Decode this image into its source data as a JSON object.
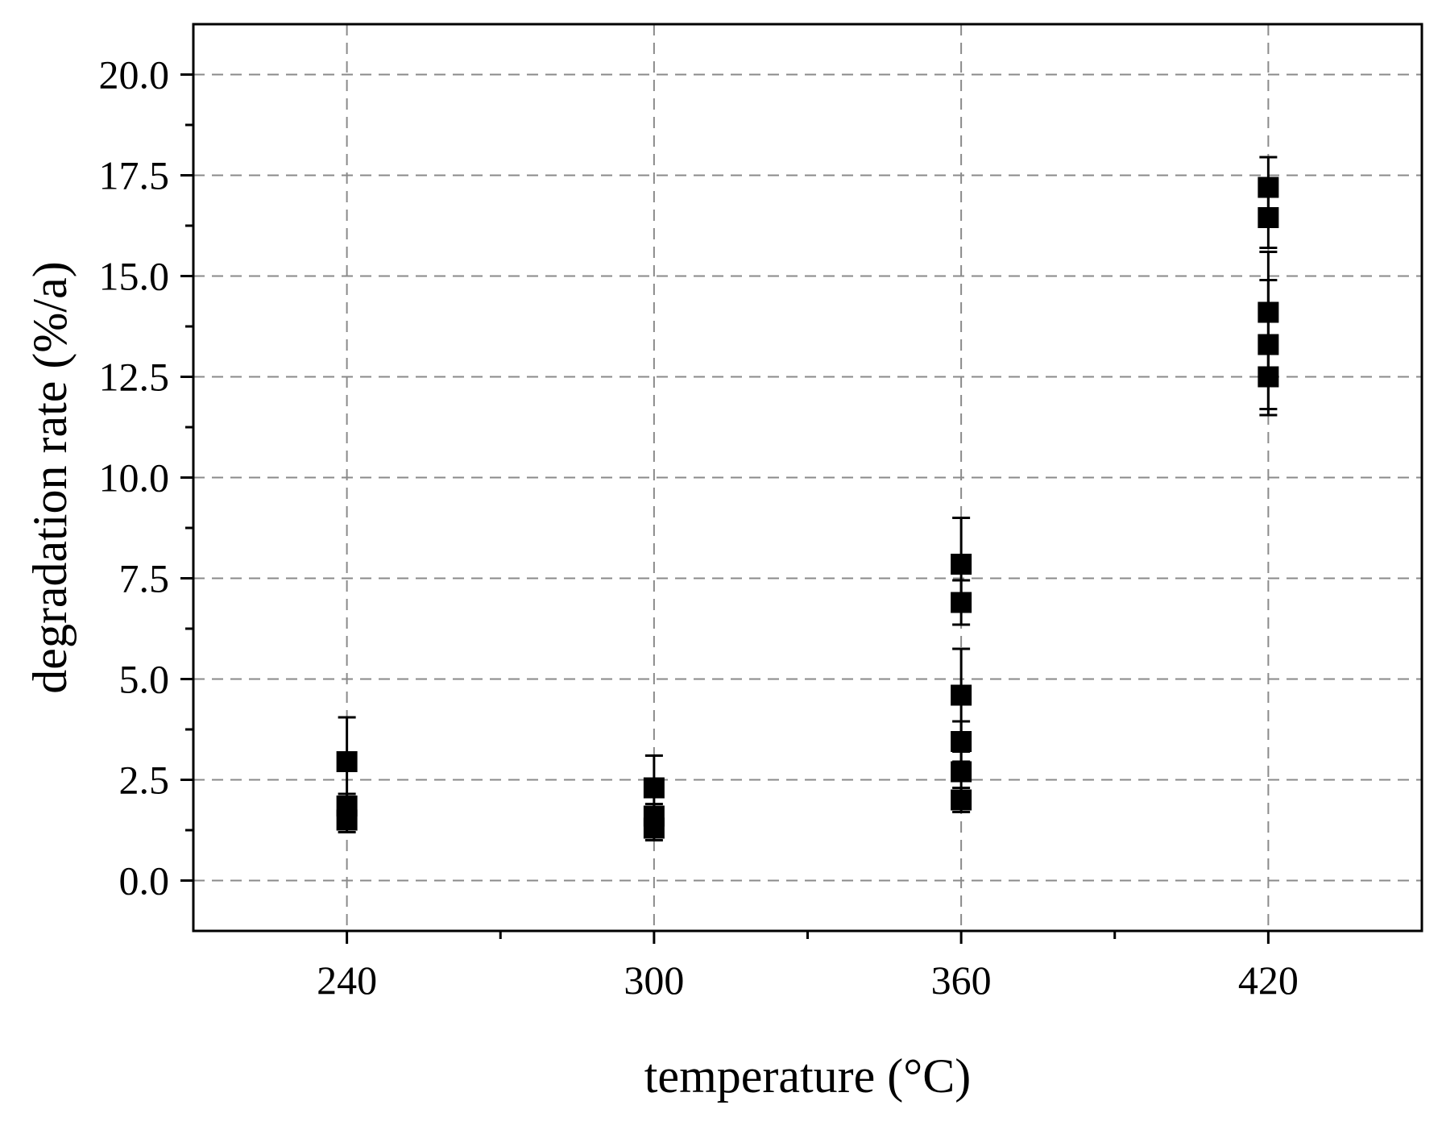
{
  "chart_data": {
    "type": "scatter",
    "title": "",
    "xlabel": "temperature (°C)",
    "ylabel": "degradation rate (%/a)",
    "xlim": [
      210,
      450
    ],
    "ylim": [
      -1.25,
      21.25
    ],
    "grid": true,
    "x_ticks": [
      240,
      300,
      360,
      420
    ],
    "x_tick_labels": [
      "240",
      "300",
      "360",
      "420"
    ],
    "y_ticks": [
      0,
      2.5,
      5,
      7.5,
      10,
      12.5,
      15,
      17.5,
      20
    ],
    "y_tick_labels": [
      "0.0",
      "2.5",
      "5.0",
      "7.5",
      "10.0",
      "12.5",
      "15.0",
      "17.5",
      "20.0"
    ],
    "marker": "square",
    "color": "#000000",
    "points": [
      {
        "x": 240,
        "y": 2.95,
        "err": 1.1
      },
      {
        "x": 240,
        "y": 1.85,
        "err": 0.3
      },
      {
        "x": 240,
        "y": 1.5,
        "err": 0.3
      },
      {
        "x": 300,
        "y": 2.3,
        "err": 0.8
      },
      {
        "x": 300,
        "y": 1.6,
        "err": 0.3
      },
      {
        "x": 300,
        "y": 1.3,
        "err": 0.3
      },
      {
        "x": 360,
        "y": 7.85,
        "err": 1.15
      },
      {
        "x": 360,
        "y": 6.9,
        "err": 0.55
      },
      {
        "x": 360,
        "y": 4.6,
        "err": 1.15
      },
      {
        "x": 360,
        "y": 3.45,
        "err": 0.5
      },
      {
        "x": 360,
        "y": 2.7,
        "err": 0.5
      },
      {
        "x": 360,
        "y": 2.0,
        "err": 0.3
      },
      {
        "x": 420,
        "y": 17.2,
        "err": 0.75
      },
      {
        "x": 420,
        "y": 16.45,
        "err": 0.75
      },
      {
        "x": 420,
        "y": 14.1,
        "err": 1.5
      },
      {
        "x": 420,
        "y": 13.3,
        "err": 1.6
      },
      {
        "x": 420,
        "y": 12.5,
        "err": 0.95
      }
    ]
  }
}
